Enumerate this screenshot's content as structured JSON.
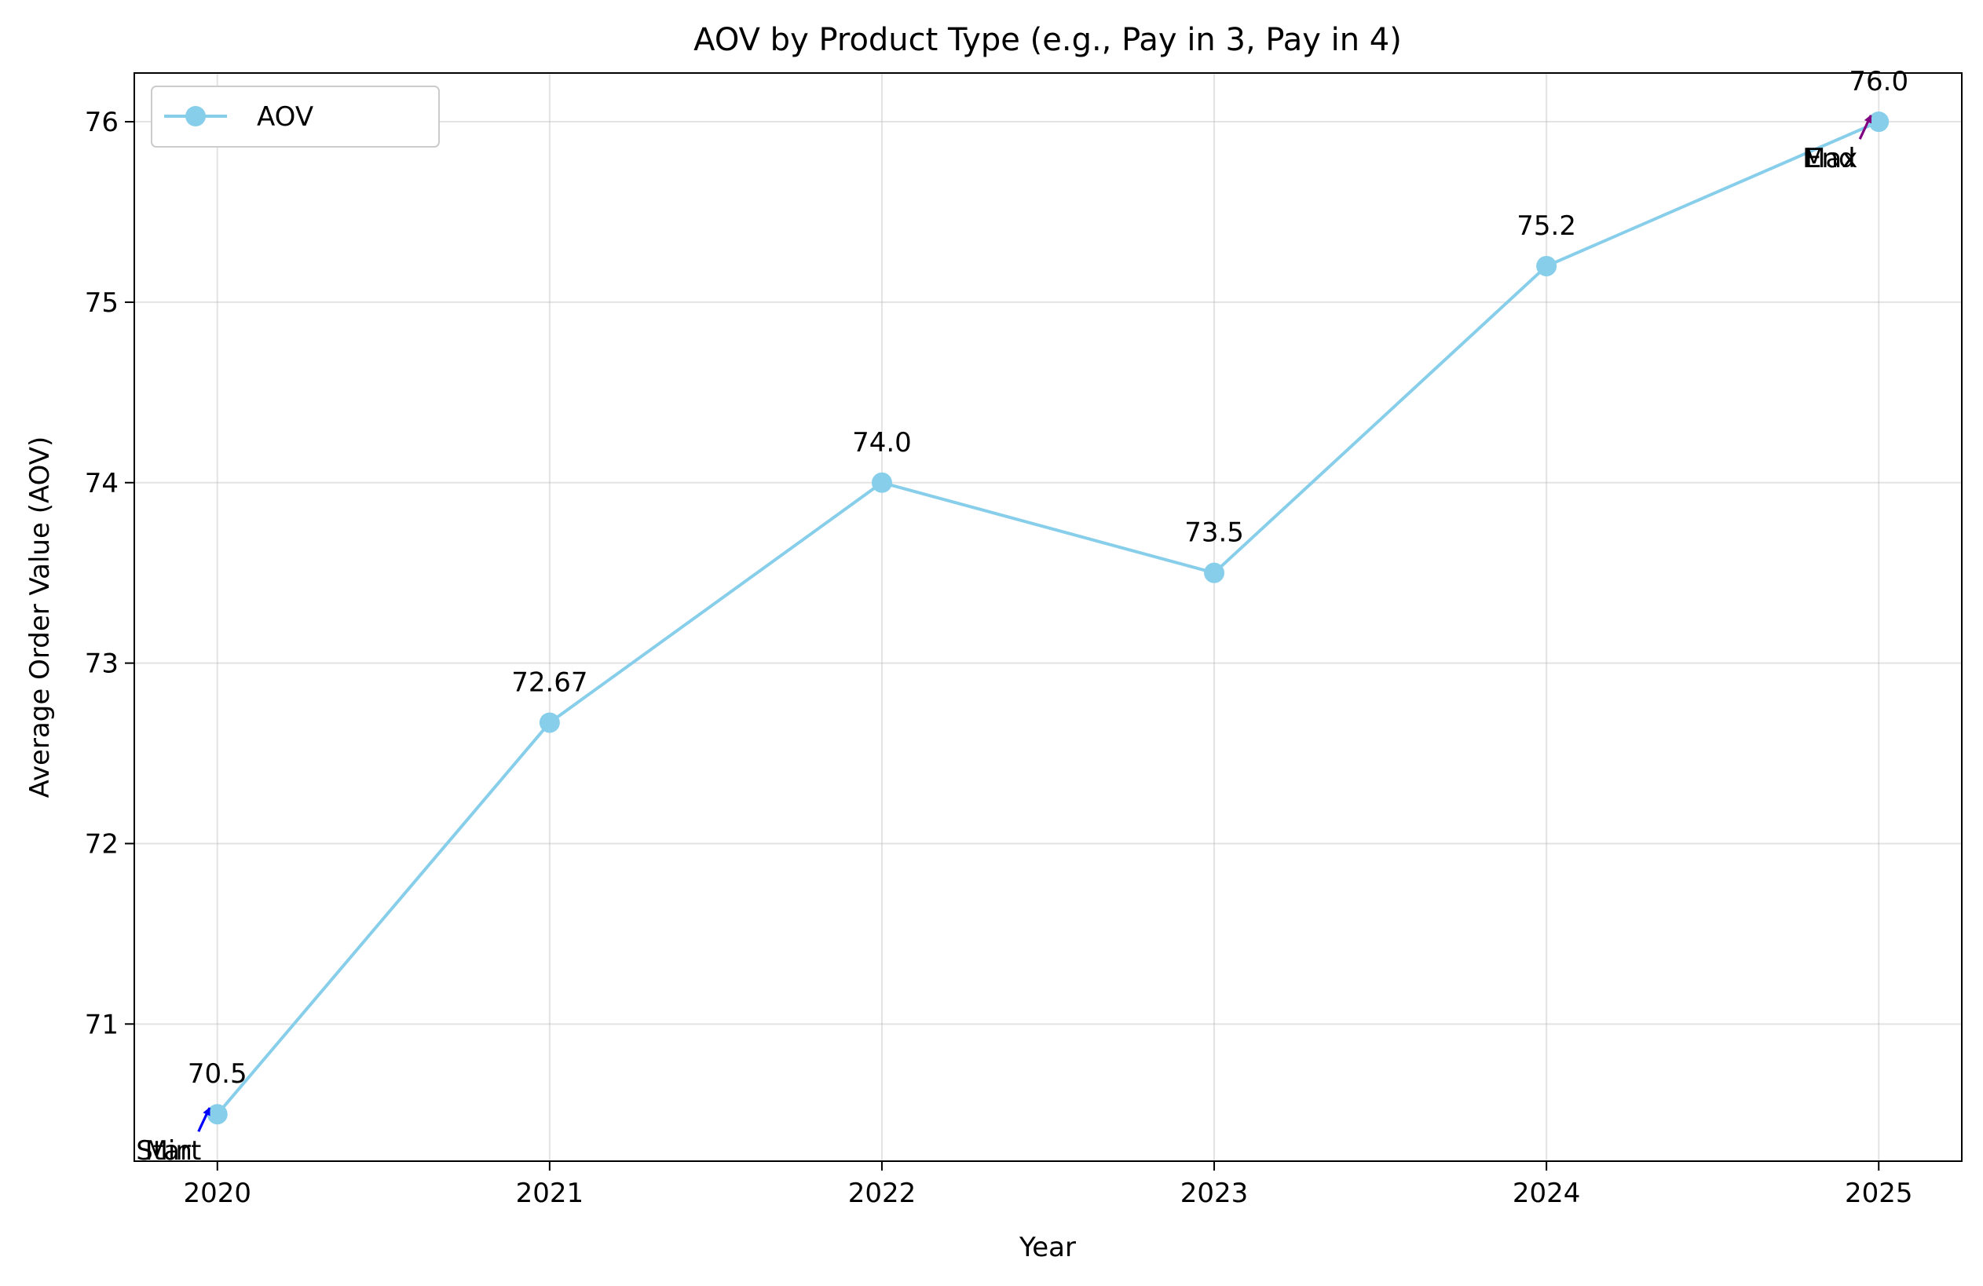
{
  "chart_data": {
    "type": "line",
    "title": "AOV by Product Type (e.g., Pay in 3, Pay in 4)",
    "xlabel": "Year",
    "ylabel": "Average Order Value (AOV)",
    "categories": [
      "2020",
      "2021",
      "2022",
      "2023",
      "2024",
      "2025"
    ],
    "x_ticks": [
      "2020",
      "2021",
      "2022",
      "2023",
      "2024",
      "2025"
    ],
    "y_ticks": [
      "71",
      "72",
      "73",
      "74",
      "75",
      "76"
    ],
    "ylim": [
      70.24,
      76.27
    ],
    "xlim": [
      2019.75,
      2025.25
    ],
    "grid": true,
    "legend_position": "upper left",
    "series": [
      {
        "name": "AOV",
        "x": [
          2020,
          2021,
          2022,
          2023,
          2024,
          2025
        ],
        "values": [
          70.5,
          72.67,
          74.0,
          73.5,
          75.2,
          76.0
        ],
        "color": "#87ceeb",
        "marker": "circle"
      }
    ],
    "data_labels": [
      "70.5",
      "72.67",
      "74.0",
      "73.5",
      "75.2",
      "76.0"
    ],
    "annotations": [
      {
        "text": "Start",
        "x": 2020,
        "y": 70.5,
        "arrow_color": "#0000ff"
      },
      {
        "text": "Min",
        "x": 2020,
        "y": 70.5,
        "arrow_color": "#0000ff"
      },
      {
        "text": "End",
        "x": 2025,
        "y": 76.0,
        "arrow_color": "#800080"
      },
      {
        "text": "Max",
        "x": 2025,
        "y": 76.0,
        "arrow_color": "#800080"
      }
    ]
  }
}
